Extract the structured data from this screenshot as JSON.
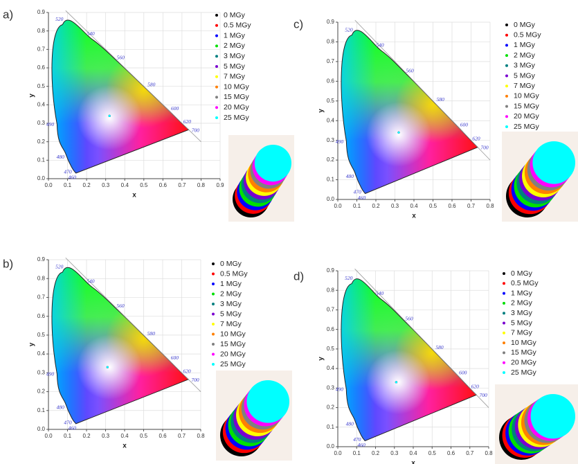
{
  "chart_data": [
    {
      "type": "scatter",
      "panel": "a)",
      "x_label": "x",
      "y_label": "y",
      "grid": true,
      "xlim": [
        0,
        0.9
      ],
      "ylim": [
        0,
        0.9
      ],
      "xticks": [
        {
          "value": 0,
          "label": "0.0"
        },
        0.1,
        0.2,
        0.3,
        0.4,
        0.5,
        0.6,
        0.7,
        0.8,
        0.9
      ],
      "yticks": [
        {
          "value": 0,
          "label": "0.0"
        },
        0.1,
        0.2,
        0.3,
        0.4,
        0.5,
        0.6,
        0.7,
        0.8,
        0.9
      ],
      "wavelengths": [
        {
          "nm": 460,
          "x": 0.144,
          "y": 0.03
        },
        {
          "nm": 470,
          "x": 0.124,
          "y": 0.058
        },
        {
          "nm": 480,
          "x": 0.091,
          "y": 0.133
        },
        {
          "nm": 490,
          "x": 0.045,
          "y": 0.295
        },
        {
          "nm": 520,
          "x": 0.074,
          "y": 0.834
        },
        {
          "nm": 540,
          "x": 0.23,
          "y": 0.754
        },
        {
          "nm": 560,
          "x": 0.373,
          "y": 0.624
        },
        {
          "nm": 580,
          "x": 0.512,
          "y": 0.487
        },
        {
          "nm": 600,
          "x": 0.627,
          "y": 0.373
        },
        {
          "nm": 620,
          "x": 0.691,
          "y": 0.308
        },
        {
          "nm": 700,
          "x": 0.735,
          "y": 0.265
        }
      ],
      "series": [
        {
          "name": "0 MGy",
          "color": "#000000",
          "x": [
            0.32
          ],
          "y": [
            0.34
          ]
        },
        {
          "name": "0.5 MGy",
          "color": "#ff0000",
          "x": [
            0.32
          ],
          "y": [
            0.34
          ]
        },
        {
          "name": "1 MGy",
          "color": "#0000ff",
          "x": [
            0.32
          ],
          "y": [
            0.34
          ]
        },
        {
          "name": "2 MGy",
          "color": "#00e000",
          "x": [
            0.32
          ],
          "y": [
            0.34
          ]
        },
        {
          "name": "3 MGy",
          "color": "#008080",
          "x": [
            0.32
          ],
          "y": [
            0.34
          ]
        },
        {
          "name": "5 MGy",
          "color": "#7a00d0",
          "x": [
            0.32
          ],
          "y": [
            0.34
          ]
        },
        {
          "name": "7 MGy",
          "color": "#ffff00",
          "x": [
            0.32
          ],
          "y": [
            0.34
          ]
        },
        {
          "name": "10 MGy",
          "color": "#ff8000",
          "x": [
            0.32
          ],
          "y": [
            0.34
          ]
        },
        {
          "name": "15 MGy",
          "color": "#808080",
          "x": [
            0.32
          ],
          "y": [
            0.34
          ]
        },
        {
          "name": "20 MGy",
          "color": "#ff00ff",
          "x": [
            0.32
          ],
          "y": [
            0.34
          ]
        },
        {
          "name": "25 MGy",
          "color": "#00ffff",
          "x": [
            0.32
          ],
          "y": [
            0.34
          ]
        }
      ]
    },
    {
      "type": "scatter",
      "panel": "b)",
      "x_label": "x",
      "y_label": "y",
      "grid": true,
      "xlim": [
        0,
        0.8
      ],
      "ylim": [
        0,
        0.9
      ],
      "xticks": [
        {
          "value": 0,
          "label": "0.0"
        },
        0.1,
        0.2,
        0.3,
        0.4,
        0.5,
        0.6,
        0.7,
        0.8
      ],
      "yticks": [
        {
          "value": 0,
          "label": "0.0"
        },
        0.1,
        0.2,
        0.3,
        0.4,
        0.5,
        0.6,
        0.7,
        0.8,
        0.9
      ],
      "wavelengths": [
        {
          "nm": 460,
          "x": 0.144,
          "y": 0.03
        },
        {
          "nm": 470,
          "x": 0.124,
          "y": 0.058
        },
        {
          "nm": 480,
          "x": 0.091,
          "y": 0.133
        },
        {
          "nm": 490,
          "x": 0.045,
          "y": 0.295
        },
        {
          "nm": 520,
          "x": 0.074,
          "y": 0.834
        },
        {
          "nm": 540,
          "x": 0.23,
          "y": 0.754
        },
        {
          "nm": 560,
          "x": 0.373,
          "y": 0.624
        },
        {
          "nm": 580,
          "x": 0.512,
          "y": 0.487
        },
        {
          "nm": 600,
          "x": 0.627,
          "y": 0.373
        },
        {
          "nm": 620,
          "x": 0.691,
          "y": 0.308
        },
        {
          "nm": 700,
          "x": 0.735,
          "y": 0.265
        }
      ],
      "series": [
        {
          "name": "0 MGy",
          "color": "#000000",
          "x": [
            0.31
          ],
          "y": [
            0.33
          ]
        },
        {
          "name": "0.5 MGy",
          "color": "#ff0000",
          "x": [
            0.31
          ],
          "y": [
            0.33
          ]
        },
        {
          "name": "1 MGy",
          "color": "#0000ff",
          "x": [
            0.31
          ],
          "y": [
            0.33
          ]
        },
        {
          "name": "2 MGy",
          "color": "#00e000",
          "x": [
            0.31
          ],
          "y": [
            0.33
          ]
        },
        {
          "name": "3 MGy",
          "color": "#008080",
          "x": [
            0.31
          ],
          "y": [
            0.33
          ]
        },
        {
          "name": "5 MGy",
          "color": "#7a00d0",
          "x": [
            0.31
          ],
          "y": [
            0.33
          ]
        },
        {
          "name": "7 MGy",
          "color": "#ffff00",
          "x": [
            0.31
          ],
          "y": [
            0.33
          ]
        },
        {
          "name": "10 MGy",
          "color": "#ff8000",
          "x": [
            0.31
          ],
          "y": [
            0.33
          ]
        },
        {
          "name": "15 MGy",
          "color": "#808080",
          "x": [
            0.31
          ],
          "y": [
            0.33
          ]
        },
        {
          "name": "20 MGy",
          "color": "#ff00ff",
          "x": [
            0.31
          ],
          "y": [
            0.33
          ]
        },
        {
          "name": "25 MGy",
          "color": "#00ffff",
          "x": [
            0.31
          ],
          "y": [
            0.33
          ]
        }
      ]
    },
    {
      "type": "scatter",
      "panel": "c)",
      "x_label": "x",
      "y_label": "y",
      "grid": true,
      "xlim": [
        0,
        0.8
      ],
      "ylim": [
        0,
        0.9
      ],
      "xticks": [
        {
          "value": 0,
          "label": "0.0"
        },
        0.1,
        0.2,
        0.3,
        0.4,
        0.5,
        0.6,
        0.7,
        0.8
      ],
      "yticks": [
        {
          "value": 0,
          "label": "0.0"
        },
        0.1,
        0.2,
        0.3,
        0.4,
        0.5,
        0.6,
        0.7,
        0.8,
        0.9
      ],
      "wavelengths": [
        {
          "nm": 460,
          "x": 0.144,
          "y": 0.03
        },
        {
          "nm": 470,
          "x": 0.124,
          "y": 0.058
        },
        {
          "nm": 480,
          "x": 0.091,
          "y": 0.133
        },
        {
          "nm": 490,
          "x": 0.045,
          "y": 0.295
        },
        {
          "nm": 520,
          "x": 0.074,
          "y": 0.834
        },
        {
          "nm": 540,
          "x": 0.23,
          "y": 0.754
        },
        {
          "nm": 560,
          "x": 0.373,
          "y": 0.624
        },
        {
          "nm": 580,
          "x": 0.512,
          "y": 0.487
        },
        {
          "nm": 600,
          "x": 0.627,
          "y": 0.373
        },
        {
          "nm": 620,
          "x": 0.691,
          "y": 0.308
        },
        {
          "nm": 700,
          "x": 0.735,
          "y": 0.265
        }
      ],
      "series": [
        {
          "name": "0 MGy",
          "color": "#000000",
          "x": [
            0.32
          ],
          "y": [
            0.34
          ]
        },
        {
          "name": "0.5 MGy",
          "color": "#ff0000",
          "x": [
            0.32
          ],
          "y": [
            0.34
          ]
        },
        {
          "name": "1 MGy",
          "color": "#0000ff",
          "x": [
            0.32
          ],
          "y": [
            0.34
          ]
        },
        {
          "name": "2 MGy",
          "color": "#00e000",
          "x": [
            0.32
          ],
          "y": [
            0.34
          ]
        },
        {
          "name": "3 MGy",
          "color": "#008080",
          "x": [
            0.32
          ],
          "y": [
            0.34
          ]
        },
        {
          "name": "5 MGy",
          "color": "#7a00d0",
          "x": [
            0.32
          ],
          "y": [
            0.34
          ]
        },
        {
          "name": "7 MGy",
          "color": "#ffff00",
          "x": [
            0.32
          ],
          "y": [
            0.34
          ]
        },
        {
          "name": "10 MGy",
          "color": "#ff8000",
          "x": [
            0.32
          ],
          "y": [
            0.34
          ]
        },
        {
          "name": "15 MGy",
          "color": "#808080",
          "x": [
            0.32
          ],
          "y": [
            0.34
          ]
        },
        {
          "name": "20 MGy",
          "color": "#ff00ff",
          "x": [
            0.32
          ],
          "y": [
            0.34
          ]
        },
        {
          "name": "25 MGy",
          "color": "#00ffff",
          "x": [
            0.32
          ],
          "y": [
            0.34
          ]
        }
      ]
    },
    {
      "type": "scatter",
      "panel": "d)",
      "x_label": "x",
      "y_label": "y",
      "grid": true,
      "xlim": [
        0,
        0.8
      ],
      "ylim": [
        0,
        0.9
      ],
      "xticks": [
        {
          "value": 0,
          "label": "0.0"
        },
        0.1,
        0.2,
        0.3,
        0.4,
        0.5,
        0.6,
        0.7,
        0.8
      ],
      "yticks": [
        {
          "value": 0,
          "label": "0.0"
        },
        0.1,
        0.2,
        0.3,
        0.4,
        0.5,
        0.6,
        0.7,
        0.8,
        0.9
      ],
      "wavelengths": [
        {
          "nm": 460,
          "x": 0.144,
          "y": 0.03
        },
        {
          "nm": 470,
          "x": 0.124,
          "y": 0.058
        },
        {
          "nm": 480,
          "x": 0.091,
          "y": 0.133
        },
        {
          "nm": 490,
          "x": 0.045,
          "y": 0.295
        },
        {
          "nm": 520,
          "x": 0.074,
          "y": 0.834
        },
        {
          "nm": 540,
          "x": 0.23,
          "y": 0.754
        },
        {
          "nm": 560,
          "x": 0.373,
          "y": 0.624
        },
        {
          "nm": 580,
          "x": 0.512,
          "y": 0.487
        },
        {
          "nm": 600,
          "x": 0.627,
          "y": 0.373
        },
        {
          "nm": 620,
          "x": 0.691,
          "y": 0.308
        },
        {
          "nm": 700,
          "x": 0.735,
          "y": 0.265
        }
      ],
      "series": [
        {
          "name": "0 MGy",
          "color": "#000000",
          "x": [
            0.31
          ],
          "y": [
            0.33
          ]
        },
        {
          "name": "0.5 MGy",
          "color": "#ff0000",
          "x": [
            0.31
          ],
          "y": [
            0.33
          ]
        },
        {
          "name": "1 MGy",
          "color": "#0000ff",
          "x": [
            0.31
          ],
          "y": [
            0.33
          ]
        },
        {
          "name": "2 MGy",
          "color": "#00e000",
          "x": [
            0.31
          ],
          "y": [
            0.33
          ]
        },
        {
          "name": "3 MGy",
          "color": "#008080",
          "x": [
            0.31
          ],
          "y": [
            0.33
          ]
        },
        {
          "name": "5 MGy",
          "color": "#7a00d0",
          "x": [
            0.31
          ],
          "y": [
            0.33
          ]
        },
        {
          "name": "7 MGy",
          "color": "#ffff00",
          "x": [
            0.31
          ],
          "y": [
            0.33
          ]
        },
        {
          "name": "10 MGy",
          "color": "#ff8000",
          "x": [
            0.31
          ],
          "y": [
            0.33
          ]
        },
        {
          "name": "15 MGy",
          "color": "#808080",
          "x": [
            0.31
          ],
          "y": [
            0.33
          ]
        },
        {
          "name": "20 MGy",
          "color": "#ff00ff",
          "x": [
            0.31
          ],
          "y": [
            0.33
          ]
        },
        {
          "name": "25 MGy",
          "color": "#00ffff",
          "x": [
            0.31
          ],
          "y": [
            0.33
          ]
        }
      ]
    }
  ]
}
